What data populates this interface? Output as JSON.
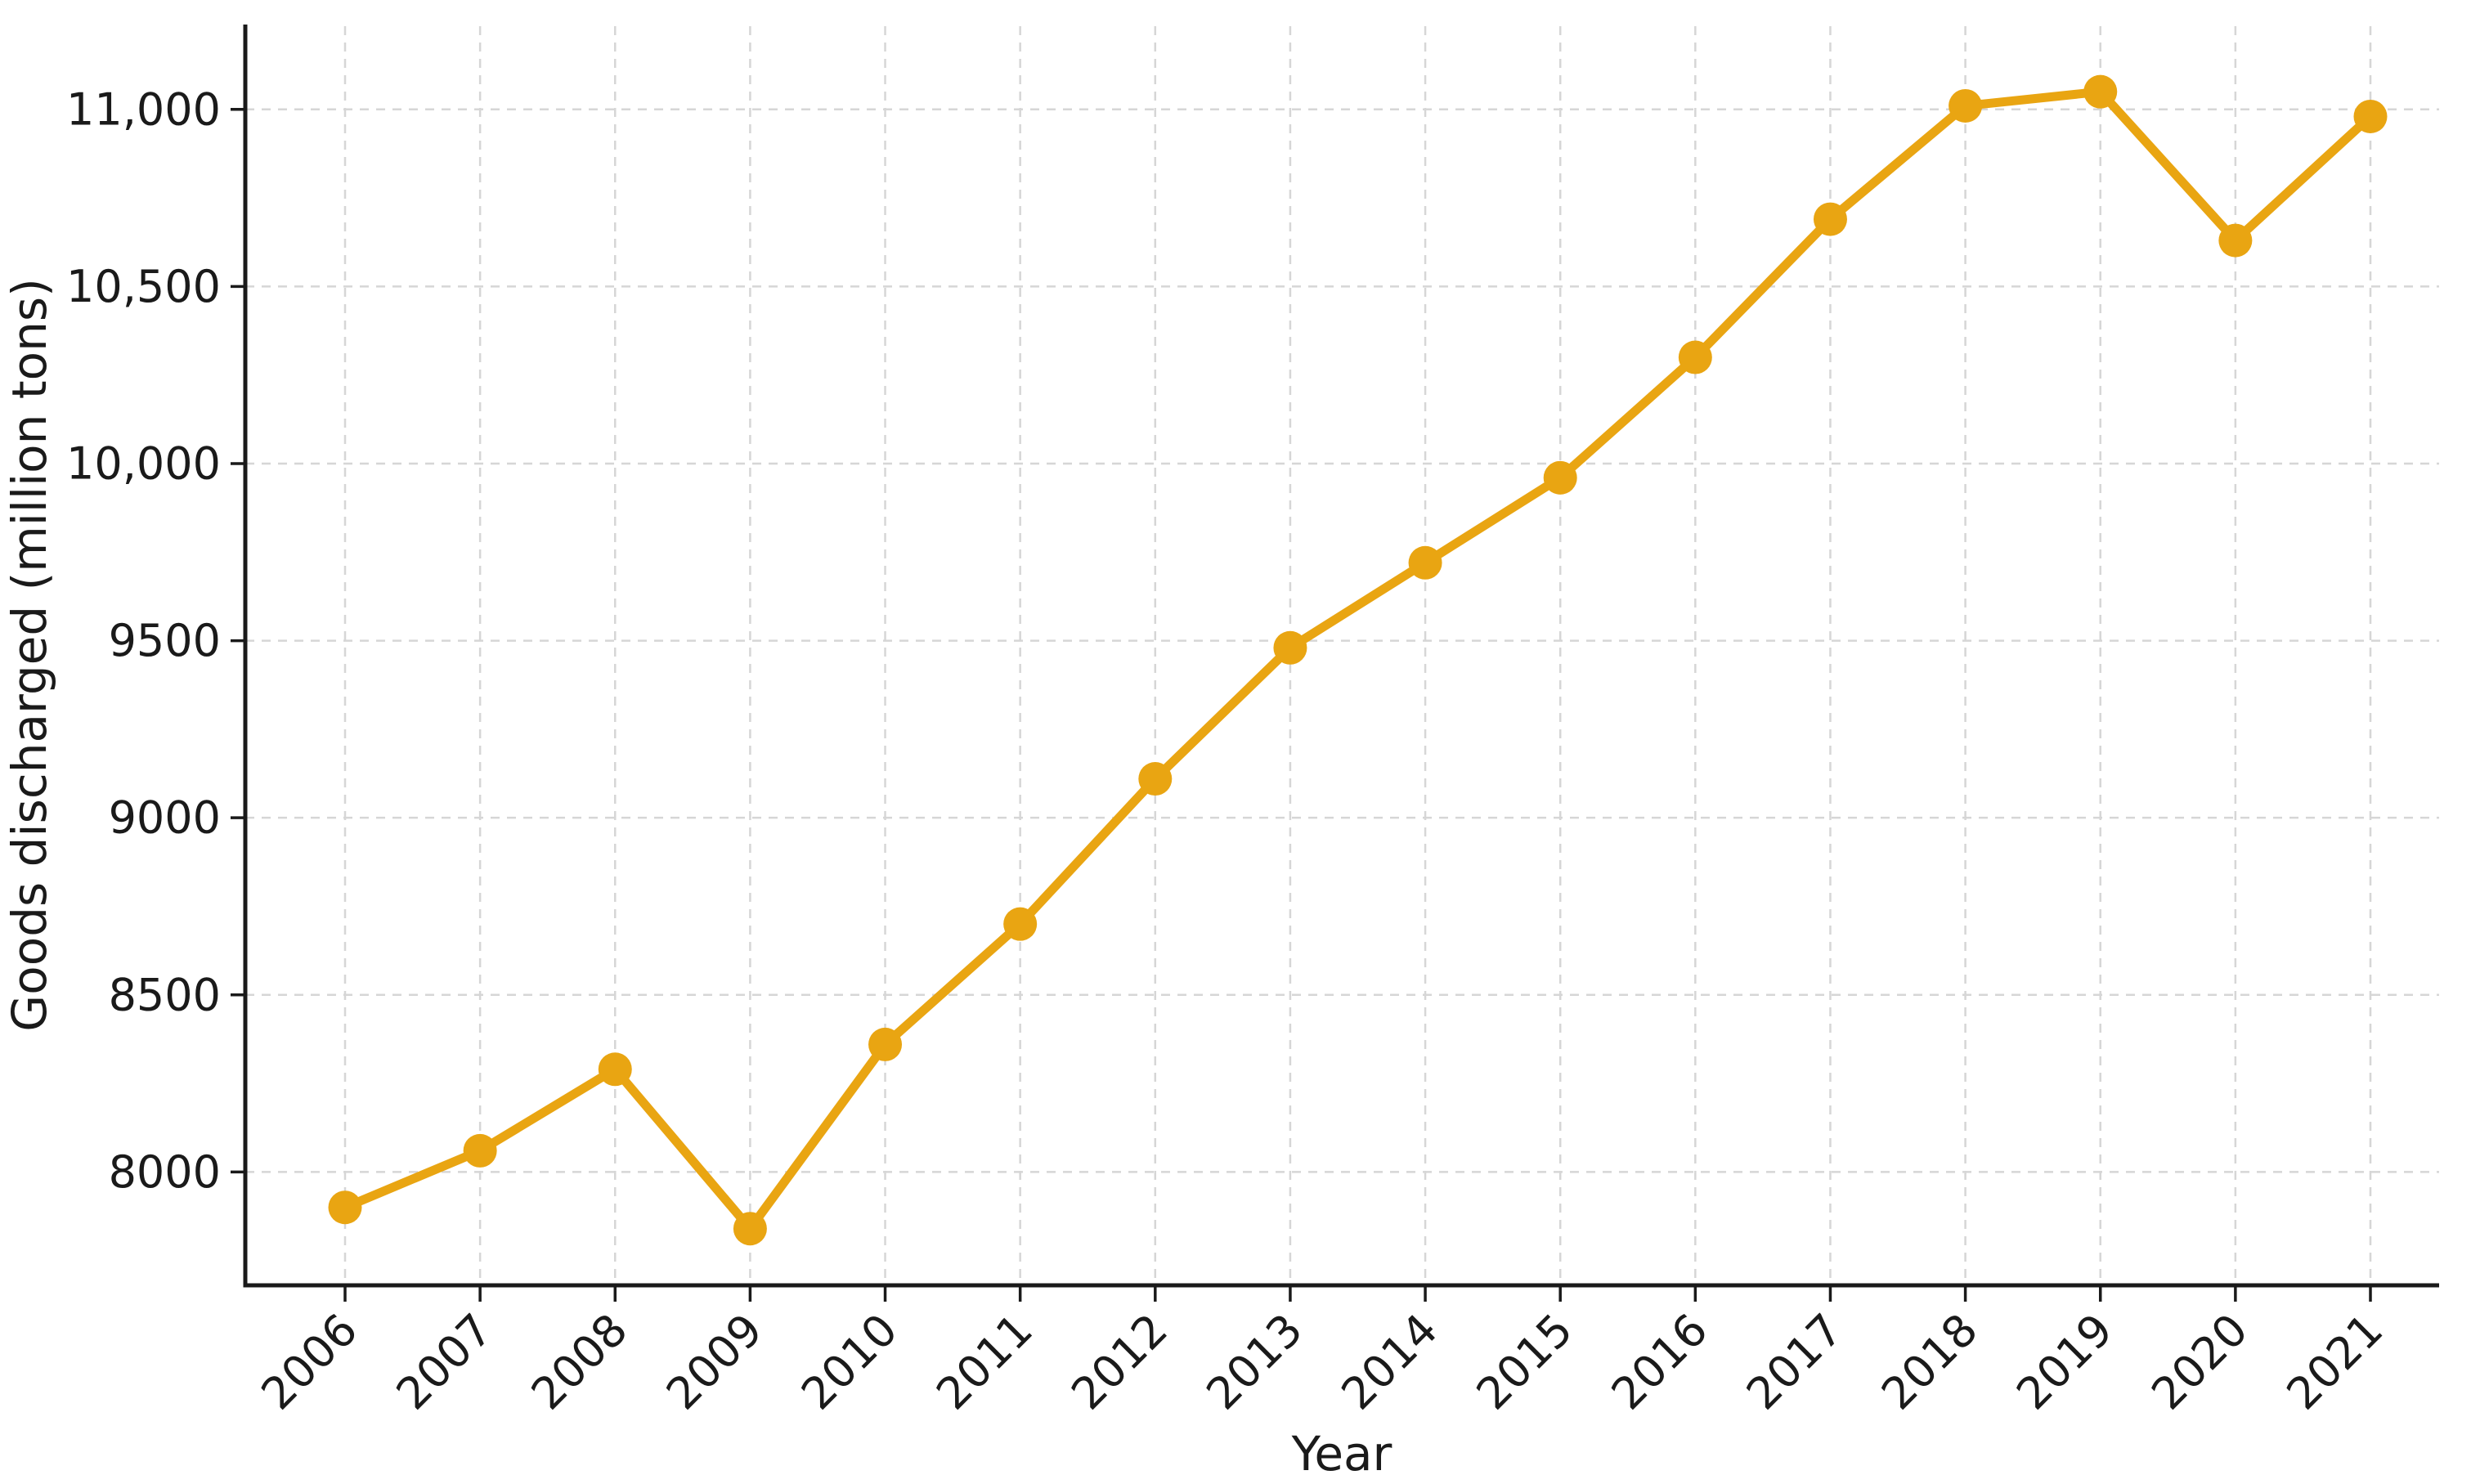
{
  "chart_data": {
    "type": "line",
    "title": "",
    "xlabel": "Year",
    "ylabel": "Goods discharged (million tons)",
    "categories": [
      "2006",
      "2007",
      "2008",
      "2009",
      "2010",
      "2011",
      "2012",
      "2013",
      "2014",
      "2015",
      "2016",
      "2017",
      "2018",
      "2019",
      "2020",
      "2021"
    ],
    "series": [
      {
        "name": "Goods discharged",
        "color": "#E9A512",
        "marker": "circle",
        "values": [
          7900,
          8060,
          8290,
          7840,
          8360,
          8700,
          9110,
          9480,
          9720,
          9960,
          10300,
          10690,
          11010,
          11050,
          10630,
          10980
        ]
      }
    ],
    "y_ticks": [
      {
        "value": 8000,
        "label": "8000"
      },
      {
        "value": 8500,
        "label": "8500"
      },
      {
        "value": 9000,
        "label": "9000"
      },
      {
        "value": 9500,
        "label": "9500"
      },
      {
        "value": 10000,
        "label": "10,000"
      },
      {
        "value": 10500,
        "label": "10,500"
      },
      {
        "value": 11000,
        "label": "11,000"
      }
    ],
    "ylim": [
      7680,
      11235
    ],
    "grid": true,
    "grid_style": "dashed",
    "legend": null
  },
  "style": {
    "line_color": "#E9A512",
    "grid_color": "#d6d6d6",
    "axis_color": "#1a1a1a",
    "background": "#ffffff"
  }
}
